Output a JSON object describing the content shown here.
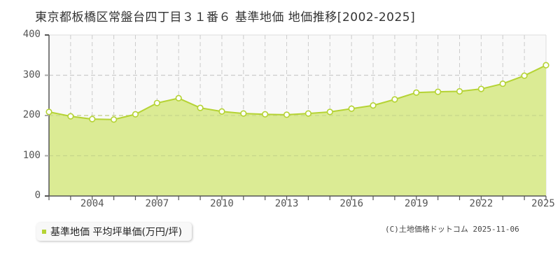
{
  "title": "東京都板橋区常盤台四丁目３１番６ 基準地価 地価推移[2002-2025]",
  "legend": {
    "label": "基準地価 平均坪単価(万円/坪)",
    "color": "#b5d334"
  },
  "credit": "(C)土地価格ドットコム 2025-11-06",
  "colors": {
    "area_fill": "#dbeb94",
    "line": "#b5d334",
    "upper_bg": "#f9f9f9",
    "grid": "#cccccc",
    "axis": "#555555"
  },
  "y_ticks": [
    "0",
    "100",
    "200",
    "300",
    "400"
  ],
  "x_ticks": [
    "2004",
    "2007",
    "2010",
    "2013",
    "2016",
    "2019",
    "2022",
    "2025"
  ],
  "chart_data": {
    "type": "area",
    "title": "東京都板橋区常盤台四丁目３１番６ 基準地価 地価推移[2002-2025]",
    "xlabel": "",
    "ylabel": "",
    "ylim": [
      0,
      400
    ],
    "xlim": [
      2002,
      2025
    ],
    "grid": true,
    "legend_position": "bottom-left",
    "x": [
      2002,
      2003,
      2004,
      2005,
      2006,
      2007,
      2008,
      2009,
      2010,
      2011,
      2012,
      2013,
      2014,
      2015,
      2016,
      2017,
      2018,
      2019,
      2020,
      2021,
      2022,
      2023,
      2024,
      2025
    ],
    "series": [
      {
        "name": "基準地価 平均坪単価(万円/坪)",
        "values": [
          209,
          198,
          191,
          190,
          203,
          231,
          243,
          219,
          210,
          205,
          203,
          202,
          205,
          209,
          217,
          225,
          240,
          257,
          259,
          260,
          266,
          279,
          299,
          325
        ]
      }
    ],
    "x_tick_labels": [
      "2004",
      "2007",
      "2010",
      "2013",
      "2016",
      "2019",
      "2022",
      "2025"
    ],
    "y_tick_labels": [
      "0",
      "100",
      "200",
      "300",
      "400"
    ]
  }
}
